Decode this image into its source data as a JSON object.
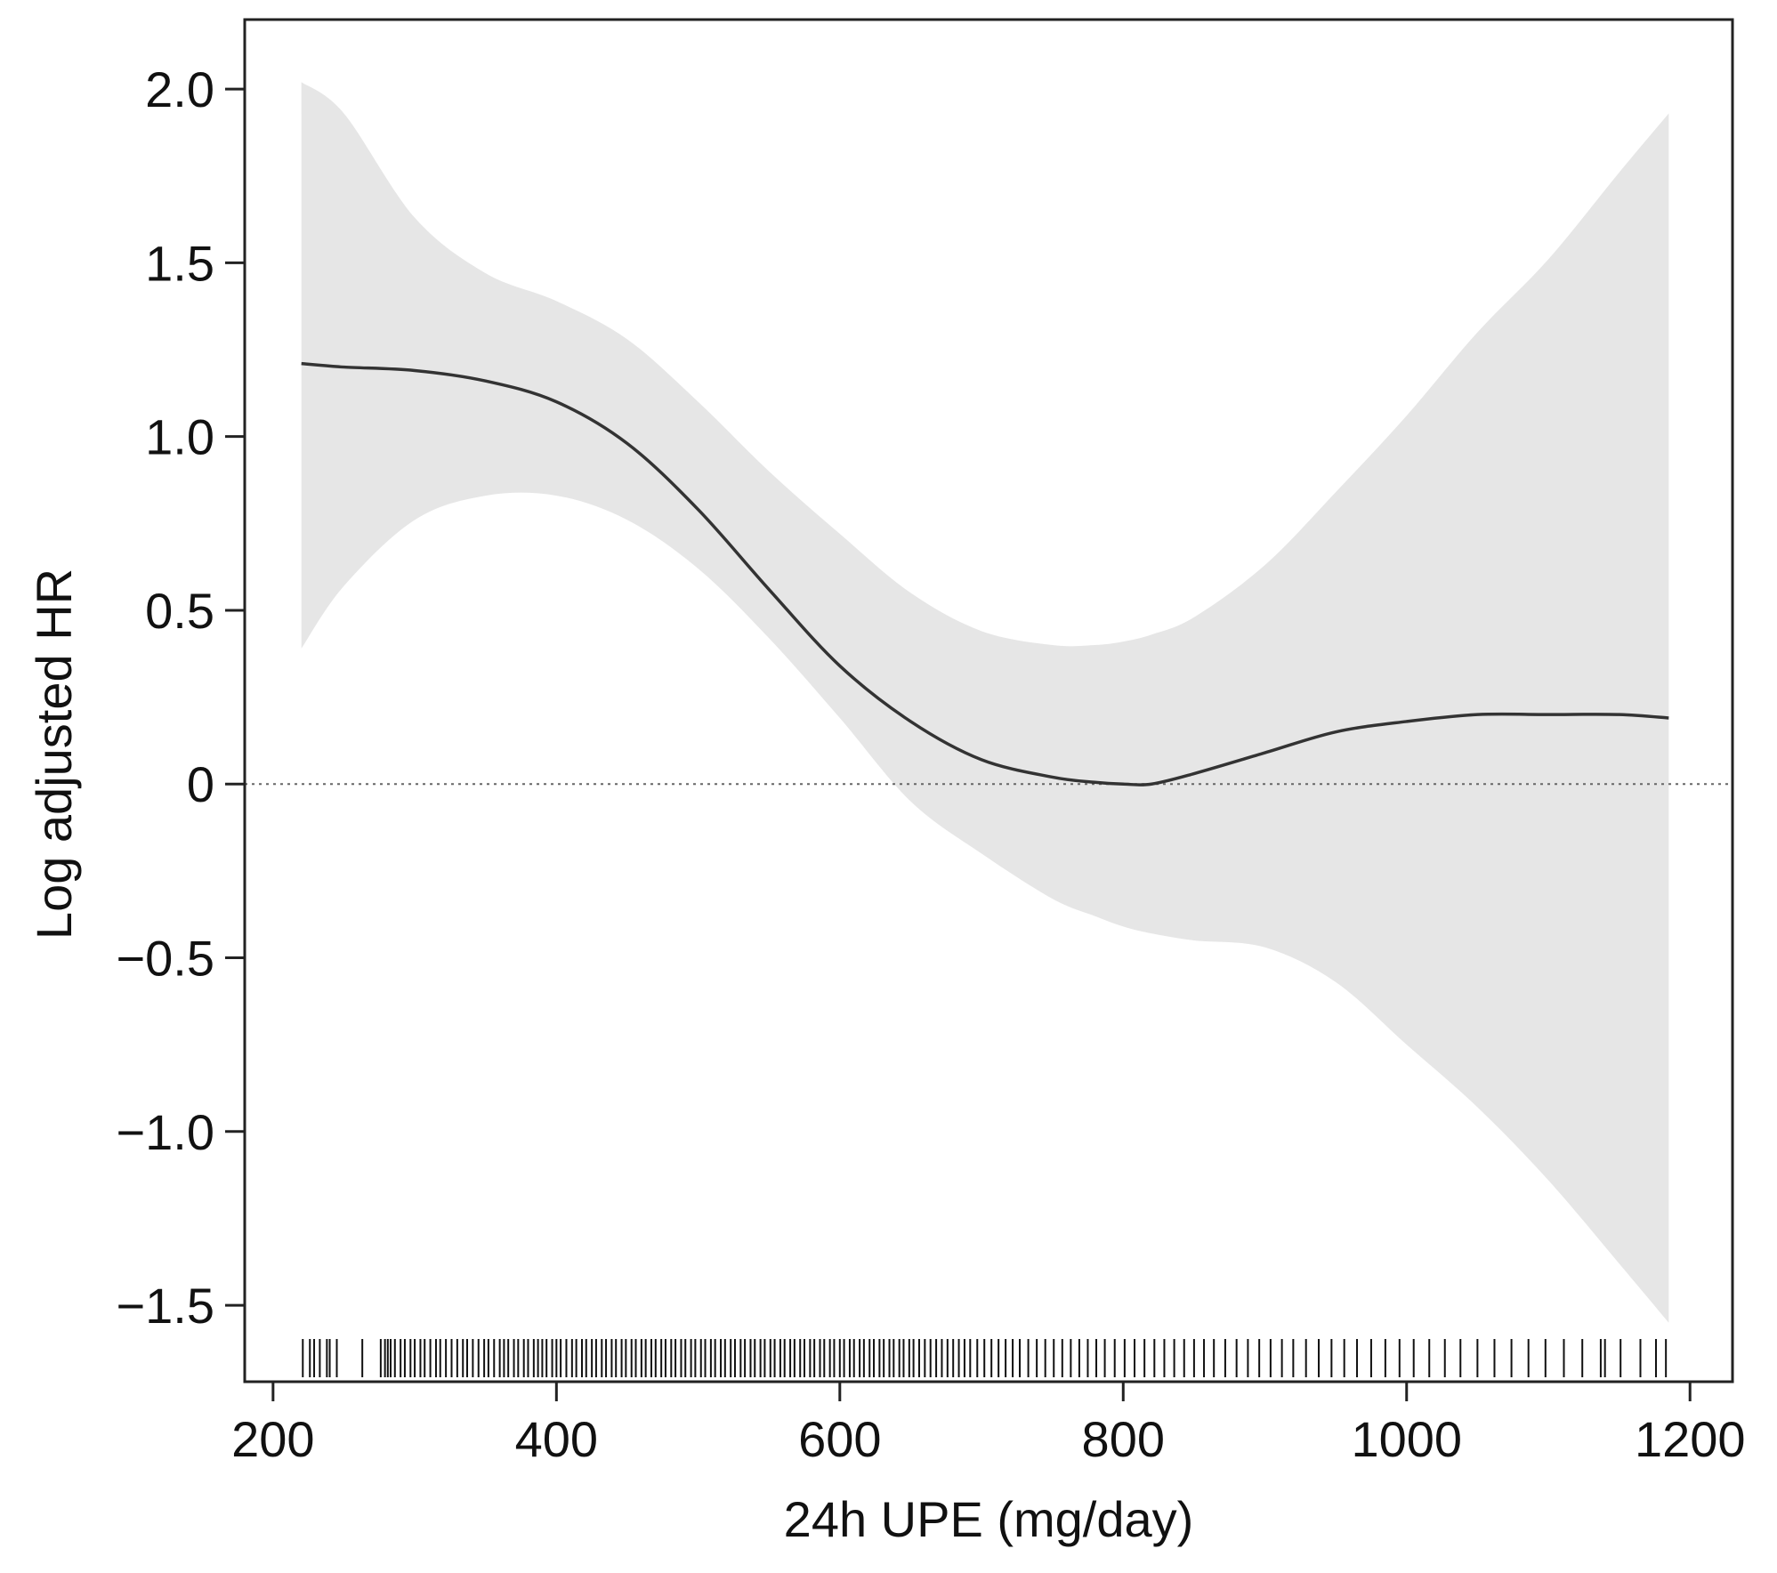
{
  "chart_data": {
    "type": "line",
    "title": "",
    "xlabel": "24h UPE (mg/day)",
    "ylabel": "Log adjusted HR",
    "xlim": [
      180,
      1230
    ],
    "ylim": [
      -1.72,
      2.2
    ],
    "x_ticks": [
      200,
      400,
      600,
      800,
      1000,
      1200
    ],
    "x_tick_labels": [
      "200",
      "400",
      "600",
      "800",
      "1000",
      "1200"
    ],
    "y_ticks": [
      2.0,
      1.5,
      1.0,
      0.5,
      0,
      -0.5,
      -1.0,
      -1.5
    ],
    "y_tick_labels": [
      "2.0",
      "1.5",
      "1.0",
      "0.5",
      "0",
      "−0.5",
      "−1.0",
      "−1.5"
    ],
    "reference_line": {
      "y": 0,
      "style": "dotted"
    },
    "grid": false,
    "legend": "none",
    "series": [
      {
        "role": "estimate",
        "x": [
          220,
          250,
          300,
          350,
          400,
          450,
          500,
          550,
          600,
          650,
          700,
          750,
          780,
          800,
          820,
          850,
          900,
          950,
          1000,
          1050,
          1100,
          1150,
          1185
        ],
        "y": [
          1.21,
          1.2,
          1.19,
          1.16,
          1.1,
          0.98,
          0.79,
          0.56,
          0.34,
          0.18,
          0.07,
          0.02,
          0.005,
          0.0,
          0.0,
          0.03,
          0.09,
          0.15,
          0.18,
          0.2,
          0.2,
          0.2,
          0.19
        ]
      },
      {
        "role": "ci_upper",
        "x": [
          220,
          250,
          300,
          350,
          400,
          450,
          500,
          550,
          600,
          650,
          700,
          750,
          780,
          800,
          820,
          850,
          900,
          950,
          1000,
          1050,
          1100,
          1150,
          1185
        ],
        "y": [
          2.02,
          1.93,
          1.63,
          1.47,
          1.39,
          1.28,
          1.1,
          0.9,
          0.72,
          0.55,
          0.44,
          0.4,
          0.4,
          0.41,
          0.43,
          0.48,
          0.63,
          0.84,
          1.06,
          1.3,
          1.51,
          1.76,
          1.93
        ]
      },
      {
        "role": "ci_lower",
        "x": [
          220,
          250,
          300,
          350,
          400,
          450,
          500,
          550,
          600,
          650,
          700,
          750,
          780,
          800,
          820,
          850,
          900,
          950,
          1000,
          1050,
          1100,
          1150,
          1185
        ],
        "y": [
          0.39,
          0.57,
          0.76,
          0.83,
          0.83,
          0.76,
          0.62,
          0.42,
          0.19,
          -0.05,
          -0.2,
          -0.33,
          -0.38,
          -0.41,
          -0.43,
          -0.45,
          -0.47,
          -0.57,
          -0.75,
          -0.93,
          -1.14,
          -1.38,
          -1.55
        ]
      }
    ],
    "rug_x": [
      221,
      226,
      229,
      233,
      238,
      240,
      245,
      263,
      276,
      279,
      281,
      283,
      286,
      290,
      293,
      297,
      300,
      304,
      307,
      311,
      315,
      318,
      322,
      326,
      330,
      334,
      337,
      341,
      345,
      349,
      352,
      356,
      360,
      363,
      366,
      370,
      373,
      377,
      380,
      384,
      387,
      390,
      393,
      397,
      400,
      403,
      407,
      411,
      414,
      418,
      421,
      425,
      428,
      432,
      435,
      439,
      442,
      446,
      449,
      453,
      456,
      460,
      463,
      467,
      470,
      474,
      477,
      481,
      484,
      488,
      491,
      495,
      498,
      502,
      505,
      509,
      512,
      516,
      519,
      523,
      526,
      530,
      533,
      537,
      540,
      544,
      547,
      551,
      554,
      558,
      561,
      565,
      568,
      572,
      575,
      579,
      582,
      586,
      589,
      593,
      596,
      600,
      603,
      607,
      610,
      614,
      617,
      621,
      624,
      628,
      631,
      635,
      638,
      642,
      645,
      649,
      652,
      656,
      660,
      664,
      668,
      672,
      676,
      680,
      684,
      688,
      692,
      697,
      702,
      707,
      712,
      717,
      722,
      727,
      733,
      739,
      745,
      751,
      757,
      763,
      769,
      775,
      781,
      787,
      794,
      801,
      808,
      815,
      822,
      829,
      836,
      843,
      850,
      857,
      864,
      872,
      880,
      888,
      896,
      904,
      912,
      920,
      929,
      938,
      947,
      956,
      965,
      975,
      985,
      995,
      1005,
      1016,
      1027,
      1038,
      1050,
      1062,
      1074,
      1086,
      1098,
      1111,
      1124,
      1137,
      1140,
      1151,
      1165,
      1176,
      1183
    ]
  }
}
